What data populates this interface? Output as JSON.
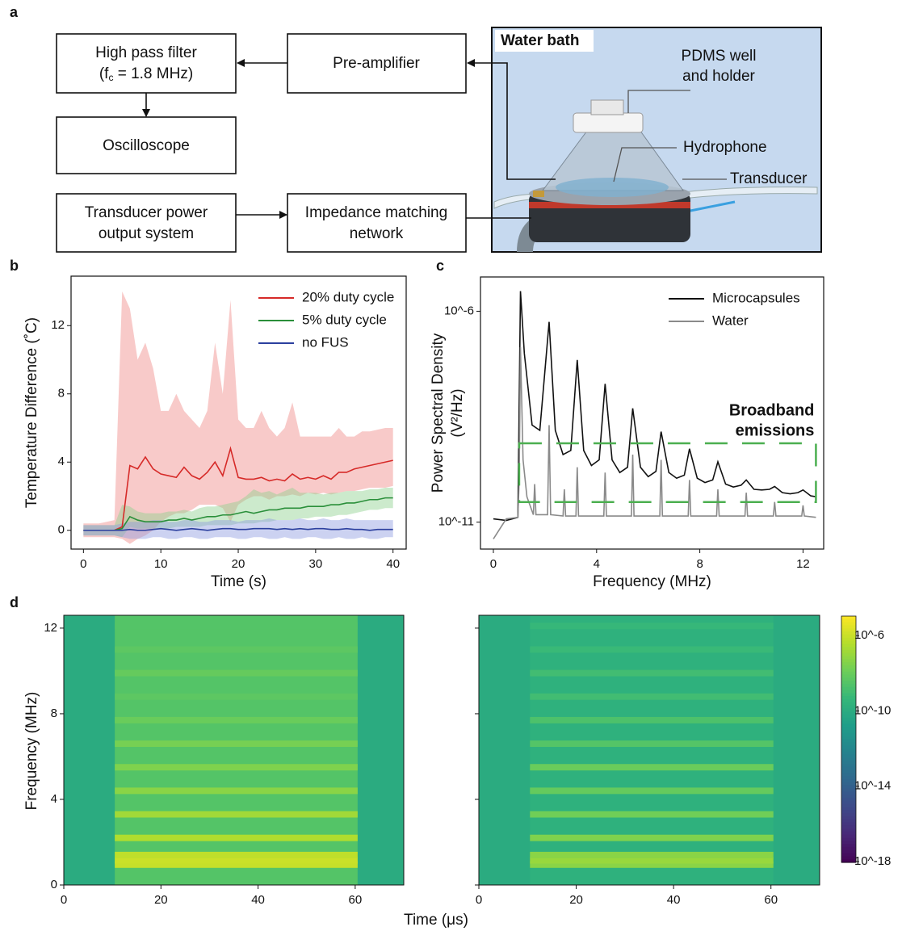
{
  "panel_labels": [
    "a",
    "b",
    "c",
    "d"
  ],
  "diagram": {
    "nodes": [
      {
        "lines": [
          "High pass filter"
        ],
        "formula": {
          "base": "(f",
          "sub": "c",
          "tail": " = 1.8 MHz)"
        }
      },
      {
        "lines": [
          "Pre-amplifier"
        ]
      },
      {
        "lines": [
          "Oscilloscope"
        ]
      },
      {
        "lines": [
          "Transducer power",
          "output system"
        ]
      },
      {
        "lines": [
          "Impedance matching",
          "network"
        ]
      }
    ],
    "photo": {
      "title": "Water bath",
      "labels": [
        [
          "PDMS well",
          "and holder"
        ],
        [
          "Hydrophone"
        ],
        [
          "Transducer"
        ]
      ]
    }
  },
  "chart_data": [
    {
      "type": "line",
      "x_label": "Time (s)",
      "y_label": "Temperature Difference (˚C)",
      "x": [
        0,
        1,
        2,
        3,
        4,
        5,
        6,
        7,
        8,
        9,
        10,
        11,
        12,
        13,
        14,
        15,
        16,
        17,
        18,
        19,
        20,
        21,
        22,
        23,
        24,
        25,
        26,
        27,
        28,
        29,
        30,
        31,
        32,
        33,
        34,
        35,
        36,
        37,
        38,
        39,
        40
      ],
      "xlim": [
        -1.6,
        41.7
      ],
      "xticks": [
        0,
        10,
        20,
        30,
        40
      ],
      "ylim": [
        -1.1,
        14.9
      ],
      "yticks": [
        0,
        4,
        8,
        12
      ],
      "legend": "upper right",
      "series": [
        {
          "name": "20% duty cycle",
          "color": "#d62a28",
          "band_color": "#f08a88",
          "values": [
            0,
            0,
            0,
            0,
            0,
            0.2,
            3.8,
            3.6,
            4.3,
            3.6,
            3.3,
            3.2,
            3.1,
            3.7,
            3.2,
            3.0,
            3.4,
            4.0,
            3.2,
            4.8,
            3.1,
            3.0,
            3.0,
            3.1,
            2.9,
            3.0,
            2.9,
            3.3,
            3.0,
            3.1,
            3.0,
            3.2,
            3.0,
            3.4,
            3.4,
            3.6,
            3.7,
            3.8,
            3.9,
            4.0,
            4.1
          ],
          "upper": [
            0.4,
            0.4,
            0.4,
            0.5,
            0.6,
            14,
            13,
            10,
            11,
            9.5,
            7,
            7,
            8,
            7,
            6.5,
            6,
            7,
            11,
            8,
            13.5,
            6.5,
            6,
            6,
            7,
            6,
            5.5,
            6,
            7.5,
            5.5,
            5.5,
            5.5,
            5.5,
            5.5,
            6,
            5.5,
            5.5,
            5.8,
            5.8,
            5.9,
            6,
            6
          ],
          "lower": [
            -0.4,
            -0.4,
            -0.4,
            -0.4,
            -0.4,
            -0.5,
            -0.8,
            -0.5,
            -0.3,
            0,
            0.5,
            0.8,
            1,
            1,
            1.2,
            1.5,
            1.5,
            1.5,
            1.3,
            0.5,
            1.5,
            1.8,
            2,
            2,
            1.8,
            2,
            2,
            2.1,
            2,
            2.2,
            2.1,
            2.2,
            2.1,
            2.2,
            2.3,
            2.3,
            2.4,
            2.5,
            2.5,
            2.5,
            2.6
          ]
        },
        {
          "name": "5% duty cycle",
          "color": "#2a8f3a",
          "band_color": "#8fd08f",
          "values": [
            0,
            0,
            0,
            0,
            0,
            0.1,
            0.8,
            0.6,
            0.5,
            0.5,
            0.5,
            0.6,
            0.6,
            0.7,
            0.6,
            0.7,
            0.8,
            0.8,
            0.9,
            0.9,
            1.0,
            1.1,
            1.0,
            1.1,
            1.2,
            1.2,
            1.3,
            1.3,
            1.3,
            1.4,
            1.4,
            1.4,
            1.5,
            1.5,
            1.6,
            1.6,
            1.7,
            1.8,
            1.8,
            1.9,
            1.9
          ],
          "upper": [
            0.3,
            0.3,
            0.3,
            0.3,
            0.3,
            1.5,
            1.4,
            1.1,
            1.0,
            1.0,
            1.0,
            1.1,
            1.1,
            1.2,
            1.1,
            1.3,
            1.4,
            1.4,
            1.5,
            1.6,
            1.7,
            2.0,
            2.4,
            2.2,
            2.3,
            2.1,
            2.3,
            2.5,
            2.2,
            2.2,
            2.2,
            2.1,
            2.2,
            2.2,
            2.3,
            2.3,
            2.3,
            2.4,
            2.4,
            2.5,
            2.5
          ],
          "lower": [
            -0.3,
            -0.3,
            -0.3,
            -0.3,
            -0.3,
            -0.4,
            0.2,
            0.1,
            0.1,
            0.1,
            0.1,
            0.1,
            0.2,
            0.2,
            0.2,
            0.2,
            0.3,
            0.3,
            0.3,
            0.3,
            0.4,
            0.4,
            0.4,
            0.5,
            0.5,
            0.6,
            0.6,
            0.6,
            0.7,
            0.7,
            0.8,
            0.8,
            0.8,
            0.9,
            0.9,
            1.0,
            1.1,
            1.2,
            1.2,
            1.3,
            1.3
          ]
        },
        {
          "name": "no FUS",
          "color": "#2b3f9e",
          "band_color": "#8f9be0",
          "values": [
            0,
            0,
            0,
            0,
            0,
            0,
            0.05,
            0,
            0,
            0.05,
            0.1,
            0.05,
            0,
            0.05,
            0.1,
            0.05,
            0,
            0.05,
            0.1,
            0.1,
            0.05,
            0.05,
            0.1,
            0.1,
            0.1,
            0.05,
            0.1,
            0.05,
            0.1,
            0.05,
            0.1,
            0.1,
            0.05,
            0.05,
            0.1,
            0.05,
            0.05,
            0,
            0.05,
            0.05,
            0.05
          ],
          "upper": [
            0.3,
            0.3,
            0.3,
            0.3,
            0.3,
            0.4,
            0.5,
            0.5,
            0.5,
            0.6,
            0.6,
            0.5,
            0.5,
            0.6,
            0.6,
            0.5,
            0.5,
            0.6,
            0.6,
            0.6,
            0.5,
            0.6,
            0.6,
            0.6,
            0.7,
            0.6,
            0.6,
            0.6,
            0.7,
            0.6,
            0.6,
            0.7,
            0.6,
            0.6,
            0.7,
            0.6,
            0.6,
            0.6,
            0.6,
            0.6,
            0.6
          ],
          "lower": [
            -0.3,
            -0.3,
            -0.3,
            -0.3,
            -0.3,
            -0.4,
            -0.5,
            -0.5,
            -0.5,
            -0.4,
            -0.4,
            -0.5,
            -0.5,
            -0.4,
            -0.4,
            -0.5,
            -0.5,
            -0.4,
            -0.4,
            -0.4,
            -0.5,
            -0.5,
            -0.4,
            -0.4,
            -0.5,
            -0.5,
            -0.4,
            -0.5,
            -0.5,
            -0.4,
            -0.4,
            -0.5,
            -0.5,
            -0.4,
            -0.5,
            -0.5,
            -0.4,
            -0.5,
            -0.5,
            -0.4,
            -0.4
          ]
        }
      ]
    },
    {
      "type": "line",
      "log_y": true,
      "x_label": "Frequency (MHz)",
      "y_label": [
        "Power Spectral Density",
        "(V²/Hz)"
      ],
      "xlim": [
        -0.5,
        12.8
      ],
      "xticks": [
        0,
        4,
        8,
        12
      ],
      "ylim": [
        2.3e-12,
        6.5e-06
      ],
      "yticks": [
        {
          "value": 1e-06,
          "label": "10^-6"
        },
        {
          "value": 1e-11,
          "label": "10^-11"
        }
      ],
      "legend": "upper right",
      "series": [
        {
          "name": "Microcapsules",
          "color": "#111111",
          "x": [
            0,
            0.5,
            0.95,
            1.05,
            1.2,
            1.5,
            1.8,
            2.16,
            2.4,
            2.7,
            3.0,
            3.25,
            3.5,
            3.8,
            4.1,
            4.33,
            4.6,
            4.9,
            5.2,
            5.4,
            5.7,
            6.0,
            6.3,
            6.5,
            6.8,
            7.1,
            7.4,
            7.6,
            7.9,
            8.2,
            8.5,
            8.7,
            9.0,
            9.3,
            9.6,
            9.8,
            10.1,
            10.4,
            10.7,
            10.9,
            11.2,
            11.5,
            11.8,
            12.0,
            12.3,
            12.5
          ],
          "values": [
            1.2e-11,
            1.1e-11,
            1.3e-11,
            3e-06,
            1e-07,
            2e-09,
            1.5e-09,
            5.6e-07,
            1.5e-09,
            4e-10,
            5e-10,
            7e-08,
            5e-10,
            2.2e-10,
            3e-10,
            1.9e-08,
            3e-10,
            1.5e-10,
            2e-10,
            5e-09,
            2e-10,
            1.2e-10,
            1.6e-10,
            1.4e-09,
            1.5e-10,
            1.1e-10,
            1.3e-10,
            5.5e-10,
            1.1e-10,
            8.7e-11,
            1e-10,
            2.7e-10,
            8e-11,
            6.8e-11,
            7.5e-11,
            1e-10,
            6e-11,
            5.8e-11,
            6e-11,
            7e-11,
            5e-11,
            4.7e-11,
            5e-11,
            5.8e-11,
            4.2e-11,
            4e-11
          ]
        },
        {
          "name": "Water",
          "color": "#8a8a8a",
          "x": [
            0,
            0.5,
            0.95,
            1.0,
            1.05,
            1.15,
            1.3,
            1.55,
            1.6,
            1.65,
            2.1,
            2.16,
            2.22,
            2.7,
            2.75,
            2.8,
            3.2,
            3.25,
            3.3,
            4.28,
            4.33,
            4.38,
            5.35,
            5.4,
            5.45,
            6.45,
            6.5,
            6.55,
            7.55,
            7.6,
            7.65,
            8.65,
            8.7,
            8.75,
            9.75,
            9.8,
            9.85,
            10.85,
            10.9,
            10.95,
            11.95,
            12.0,
            12.05,
            12.5
          ],
          "values": [
            4e-12,
            1.2e-11,
            1.3e-11,
            1e-10,
            1.4e-07,
            3e-10,
            4e-11,
            1.5e-11,
            8e-11,
            1.5e-11,
            1.5e-11,
            2e-09,
            1.5e-11,
            1.4e-11,
            6e-11,
            1.4e-11,
            1.4e-11,
            2e-10,
            1.4e-11,
            1.4e-11,
            1.5e-10,
            1.4e-11,
            1.4e-11,
            4e-10,
            1.4e-11,
            1.4e-11,
            3e-10,
            1.4e-11,
            1.4e-11,
            1e-10,
            1.4e-11,
            1.4e-11,
            6e-11,
            1.4e-11,
            1.4e-11,
            5e-11,
            1.4e-11,
            1.4e-11,
            3e-11,
            1.4e-11,
            1.4e-11,
            2.5e-11,
            1.4e-11,
            1.3e-11
          ]
        }
      ],
      "annotation": {
        "text": [
          "Broadband",
          "emissions"
        ],
        "color": "#4caf50",
        "box_x": [
          1,
          12.5
        ],
        "box_y": [
          3e-11,
          7.4e-10
        ]
      }
    },
    {
      "type": "heatmap",
      "x_label": "Time (μs)",
      "y_label": "Frequency (MHz)",
      "xlim": [
        0,
        70
      ],
      "xticks": [
        0,
        20,
        40,
        60
      ],
      "ylim": [
        0,
        12.6
      ],
      "yticks": [
        0,
        4,
        8,
        12
      ],
      "pulse": [
        10.5,
        60.5
      ],
      "background": 1e-10,
      "panels": [
        {
          "pulse_floor": 3e-09,
          "bands": [
            0.95,
            1.15,
            1.4,
            2.2,
            3.3,
            4.4,
            5.5,
            6.6,
            7.7,
            8.8,
            9.9,
            11,
            12.1
          ],
          "levels": [
            8e-07,
            1e-06,
            6e-07,
            3e-07,
            1.5e-07,
            5e-08,
            3e-08,
            2e-08,
            1e-08,
            5e-09,
            8e-09,
            5e-09,
            3e-09
          ]
        },
        {
          "pulse_floor": 2e-10,
          "bands": [
            0.95,
            1.15,
            1.4,
            2.2,
            3.3,
            4.4,
            5.5,
            6.6,
            7.7,
            8.8,
            9.9,
            11,
            12.1
          ],
          "levels": [
            5e-08,
            1e-07,
            5e-08,
            3e-08,
            1.5e-08,
            8e-09,
            1e-08,
            3e-09,
            2e-09,
            1e-09,
            1e-09,
            6e-10,
            5e-10
          ]
        }
      ],
      "colorbar": {
        "clim": [
          9e-19,
          1.1e-05
        ],
        "ticks": [
          {
            "value": 1e-06,
            "label": "10^-6"
          },
          {
            "value": 1e-10,
            "label": "10^-10"
          },
          {
            "value": 1e-14,
            "label": "10^-14"
          },
          {
            "value": 1e-18,
            "label": "10^-18"
          }
        ]
      }
    }
  ]
}
